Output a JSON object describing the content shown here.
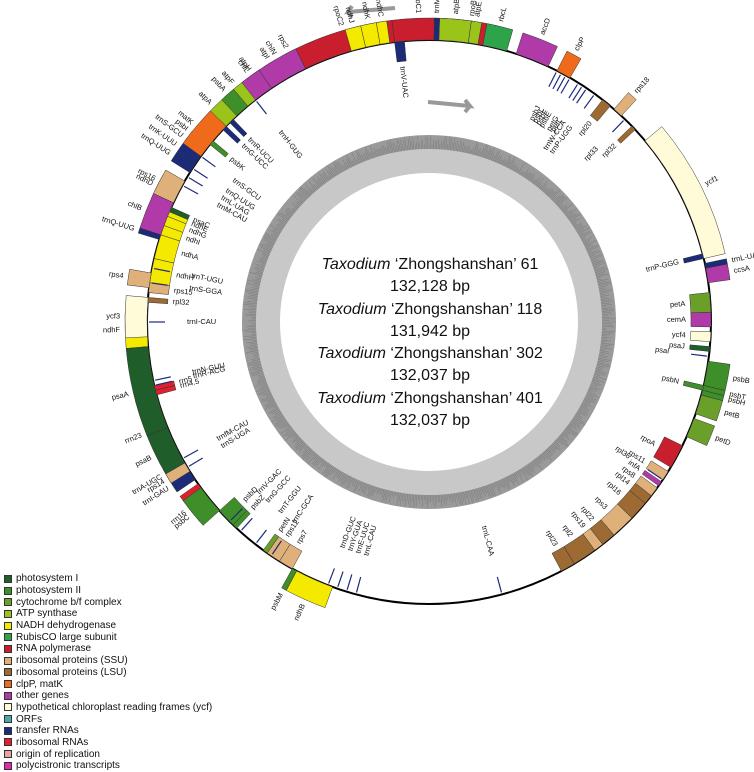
{
  "center": [
    {
      "genus": "Taxodium",
      "cultivar": "‘Zhongshanshan’ 61",
      "size": "132,128 bp"
    },
    {
      "genus": "Taxodium",
      "cultivar": "‘Zhongshanshan’ 118",
      "size": "131,942 bp"
    },
    {
      "genus": "Taxodium",
      "cultivar": "‘Zhongshanshan’ 302",
      "size": "132,037 bp"
    },
    {
      "genus": "Taxodium",
      "cultivar": "‘Zhongshanshan’ 401",
      "size": "132,037 bp"
    }
  ],
  "legend": [
    {
      "label": "photosystem I",
      "color": "#1f5e2a"
    },
    {
      "label": "photosystem II",
      "color": "#3e8e2a"
    },
    {
      "label": "cytochrome b/f complex",
      "color": "#6aa02a"
    },
    {
      "label": "ATP synthase",
      "color": "#9bc41a"
    },
    {
      "label": "NADH dehydrogenase",
      "color": "#f4ea00"
    },
    {
      "label": "RubisCO large subunit",
      "color": "#2ea44a"
    },
    {
      "label": "RNA polymerase",
      "color": "#c81e2e"
    },
    {
      "label": "ribosomal proteins (SSU)",
      "color": "#dfb07a"
    },
    {
      "label": "ribosomal proteins (LSU)",
      "color": "#9c6a32"
    },
    {
      "label": "clpP, matK",
      "color": "#ef6a1a"
    },
    {
      "label": "other genes",
      "color": "#b03aa8"
    },
    {
      "label": "hypothetical chloroplast reading frames (ycf)",
      "color": "#fffbd8"
    },
    {
      "label": "ORFs",
      "color": "#4aa8a0"
    },
    {
      "label": "transfer RNAs",
      "color": "#1c2a7a"
    },
    {
      "label": "ribosomal RNAs",
      "color": "#e0202e"
    },
    {
      "label": "origin of replication",
      "color": "#e7a4a0"
    },
    {
      "label": "polycistronic transcripts",
      "color": "#e22aa8"
    }
  ],
  "genes": [
    {
      "name": "rpoC2",
      "a": -26,
      "b": -7,
      "side": "out",
      "cat": "RNA polymerase"
    },
    {
      "name": "rpoC1",
      "a": -7,
      "b": 3,
      "side": "out",
      "cat": "RNA polymerase"
    },
    {
      "name": "rpoB",
      "a": 3,
      "b": 13,
      "side": "out",
      "cat": "RNA polymerase"
    },
    {
      "name": "rps2",
      "a": -29,
      "b": -26,
      "side": "out",
      "cat": "ribosomal proteins (SSU)"
    },
    {
      "name": "atpI",
      "a": -33,
      "b": -30,
      "side": "out",
      "cat": "ATP synthase"
    },
    {
      "name": "atpH",
      "a": -37,
      "b": -34,
      "side": "out",
      "cat": "ATP synthase"
    },
    {
      "name": "atpF",
      "a": -42,
      "b": -37,
      "side": "out",
      "cat": "ATP synthase"
    },
    {
      "name": "atpA",
      "a": -48,
      "b": -42,
      "side": "out",
      "cat": "ATP synthase"
    },
    {
      "name": "psbI",
      "a": -52,
      "b": -51,
      "side": "out",
      "cat": "photosystem II"
    },
    {
      "name": "psbK",
      "a": -51,
      "b": -50,
      "side": "in",
      "cat": "photosystem II"
    },
    {
      "name": "trnS-GCU",
      "a": -53.5,
      "b": -52.5,
      "side": "out",
      "cat": "transfer RNAs"
    },
    {
      "name": "trnQ-UUG",
      "a": -58,
      "b": -56,
      "side": "out",
      "cat": "transfer RNAs"
    },
    {
      "name": "trnG-UCC",
      "a": -47,
      "b": -46,
      "side": "in",
      "cat": "transfer RNAs"
    },
    {
      "name": "trnR-UCU",
      "a": -45,
      "b": -44,
      "side": "in",
      "cat": "transfer RNAs"
    },
    {
      "name": "ndhD",
      "a": -66,
      "b": -61,
      "side": "out",
      "cat": "NADH dehydrogenase"
    },
    {
      "name": "psaC",
      "a": -67,
      "b": -66,
      "side": "in",
      "cat": "photosystem I"
    },
    {
      "name": "ndhE",
      "a": -68,
      "b": -67,
      "side": "in",
      "cat": "NADH dehydrogenase"
    },
    {
      "name": "ndhG",
      "a": -70,
      "b": -68,
      "side": "in",
      "cat": "NADH dehydrogenase"
    },
    {
      "name": "ndhI",
      "a": -72,
      "b": -70,
      "side": "in",
      "cat": "NADH dehydrogenase"
    },
    {
      "name": "ndhA",
      "a": -77,
      "b": -72,
      "side": "in",
      "cat": "NADH dehydrogenase"
    },
    {
      "name": "ndhH",
      "a": -82,
      "b": -77,
      "side": "in",
      "cat": "NADH dehydrogenase"
    },
    {
      "name": "rps15",
      "a": -84,
      "b": -82,
      "side": "in",
      "cat": "ribosomal proteins (SSU)"
    },
    {
      "name": "rpl32",
      "a": -86,
      "b": -85,
      "side": "in",
      "cat": "ribosomal proteins (LSU)"
    },
    {
      "name": "ndhF",
      "a": -95,
      "b": -88,
      "side": "out",
      "cat": "NADH dehydrogenase"
    },
    {
      "name": "rrn23",
      "a": -118,
      "b": -105,
      "side": "out",
      "cat": "ribosomal RNAs"
    },
    {
      "name": "rrn4.5",
      "a": -105,
      "b": -104,
      "side": "in",
      "cat": "ribosomal RNAs"
    },
    {
      "name": "rrn5",
      "a": -104,
      "b": -103,
      "side": "in",
      "cat": "ribosomal RNAs"
    },
    {
      "name": "trnA-UGC",
      "a": -121,
      "b": -119,
      "side": "out",
      "cat": "transfer RNAs"
    },
    {
      "name": "trnI-GAU",
      "a": -124,
      "b": -121,
      "side": "out",
      "cat": "transfer RNAs"
    },
    {
      "name": "rrn16",
      "a": -131,
      "b": -125,
      "side": "out",
      "cat": "ribosomal RNAs"
    },
    {
      "name": "rps12",
      "a": -148,
      "b": -145,
      "side": "in",
      "cat": "ribosomal proteins (SSU)"
    },
    {
      "name": "rps7",
      "a": -151,
      "b": -148,
      "side": "in",
      "cat": "ribosomal proteins (SSU)"
    },
    {
      "name": "ndhB",
      "a": -160,
      "b": -152,
      "side": "out",
      "cat": "NADH dehydrogenase"
    },
    {
      "name": "rpl23",
      "a": -211,
      "b": -208,
      "side": "in",
      "cat": "ribosomal proteins (LSU)"
    },
    {
      "name": "rpl2",
      "a": -216,
      "b": -211,
      "side": "in",
      "cat": "ribosomal proteins (LSU)"
    },
    {
      "name": "rps19",
      "a": -218,
      "b": -216,
      "side": "in",
      "cat": "ribosomal proteins (SSU)"
    },
    {
      "name": "rpl22",
      "a": -221,
      "b": -218,
      "side": "in",
      "cat": "ribosomal proteins (LSU)"
    },
    {
      "name": "rps3",
      "a": -226,
      "b": -221,
      "side": "in",
      "cat": "ribosomal proteins (SSU)"
    },
    {
      "name": "rpl16",
      "a": -230,
      "b": -226,
      "side": "in",
      "cat": "ribosomal proteins (LSU)"
    },
    {
      "name": "rpl14",
      "a": -232,
      "b": -230,
      "side": "in",
      "cat": "ribosomal proteins (LSU)"
    },
    {
      "name": "rps8",
      "a": -234,
      "b": -232,
      "side": "in",
      "cat": "ribosomal proteins (SSU)"
    },
    {
      "name": "infA",
      "a": -235.5,
      "b": -234.5,
      "side": "in",
      "cat": "other genes"
    },
    {
      "name": "rps11",
      "a": -238,
      "b": -236,
      "side": "in",
      "cat": "ribosomal proteins (SSU)"
    },
    {
      "name": "rpoA",
      "a": -244,
      "b": -239,
      "side": "in",
      "cat": "RNA polymerase"
    },
    {
      "name": "petD",
      "a": -250,
      "b": -246,
      "side": "out",
      "cat": "cytochrome b/f complex"
    },
    {
      "name": "petB",
      "a": -255,
      "b": -251,
      "side": "out",
      "cat": "cytochrome b/f complex"
    },
    {
      "name": "psbH",
      "a": -256,
      "b": -255,
      "side": "out",
      "cat": "photosystem II"
    },
    {
      "name": "psbT",
      "a": -257,
      "b": -256,
      "side": "out",
      "cat": "photosystem II"
    },
    {
      "name": "psbB",
      "a": -262,
      "b": -257,
      "side": "out",
      "cat": "photosystem II"
    },
    {
      "name": "psbN",
      "a": -257,
      "b": -256,
      "side": "in",
      "cat": "photosystem II"
    },
    {
      "name": "psaJ",
      "a": -265,
      "b": -264,
      "side": "in",
      "cat": "photosystem I"
    },
    {
      "name": "ycf4",
      "a": -268,
      "b": -266,
      "side": "in",
      "cat": "hypothetical chloroplast reading frames (ycf)"
    },
    {
      "name": "cemA",
      "a": -272,
      "b": -269,
      "side": "in",
      "cat": "other genes"
    },
    {
      "name": "petA",
      "a": -276,
      "b": -272,
      "side": "in",
      "cat": "cytochrome b/f complex"
    },
    {
      "name": "ccsA",
      "a": -281,
      "b": -278,
      "side": "out",
      "cat": "other genes"
    },
    {
      "name": "trnL-UAG",
      "a": -282,
      "b": -281,
      "side": "out",
      "cat": "transfer RNAs"
    },
    {
      "name": "ycf1",
      "a": -310,
      "b": -283,
      "side": "out",
      "cat": "hypothetical chloroplast reading frames (ycf)"
    },
    {
      "name": "rpl32",
      "a": -314,
      "b": -313,
      "side": "in",
      "cat": "ribosomal proteins (LSU)"
    },
    {
      "name": "trnP-GGG",
      "a": -284,
      "b": -283,
      "side": "in",
      "cat": "transfer RNAs"
    },
    {
      "name": "rps18",
      "a": -319,
      "b": -317,
      "side": "out",
      "cat": "ribosomal proteins (SSU)"
    },
    {
      "name": "rpl20",
      "a": -322,
      "b": -320,
      "side": "in",
      "cat": "ribosomal proteins (LSU)"
    },
    {
      "name": "clpP",
      "a": -333,
      "b": -330,
      "side": "out",
      "cat": "clpP, matK"
    },
    {
      "name": "accD",
      "a": -342,
      "b": -335,
      "side": "out",
      "cat": "other genes"
    },
    {
      "name": "rbcL",
      "a": -349,
      "b": -344,
      "side": "out",
      "cat": "RubisCO large subunit"
    },
    {
      "name": "atpE",
      "a": -352,
      "b": -350,
      "side": "out",
      "cat": "ATP synthase"
    },
    {
      "name": "atpB",
      "a": -358,
      "b": -352,
      "side": "out",
      "cat": "ATP synthase"
    },
    {
      "name": "trnM-CAU",
      "a": -359,
      "b": -358,
      "side": "out",
      "cat": "transfer RNAs"
    },
    {
      "name": "trnV-UAC",
      "a": -367,
      "b": -365,
      "side": "in",
      "cat": "transfer RNAs"
    },
    {
      "name": "ndhC",
      "a": -370,
      "b": -368,
      "side": "out",
      "cat": "NADH dehydrogenase"
    },
    {
      "name": "ndhK",
      "a": -373,
      "b": -370,
      "side": "out",
      "cat": "NADH dehydrogenase"
    },
    {
      "name": "ndhJ",
      "a": -376,
      "b": -373,
      "side": "out",
      "cat": "NADH dehydrogenase"
    },
    {
      "name": "chlN",
      "a": -394,
      "b": -386,
      "side": "out",
      "cat": "other genes"
    },
    {
      "name": "chlL",
      "a": -398,
      "b": -394,
      "side": "out",
      "cat": "other genes"
    },
    {
      "name": "psbA",
      "a": -403,
      "b": -400,
      "side": "out",
      "cat": "photosystem II"
    },
    {
      "name": "matK",
      "a": -414,
      "b": -406,
      "side": "out",
      "cat": "clpP, matK"
    },
    {
      "name": "trnK-UUU",
      "a": -416,
      "b": -414,
      "side": "out",
      "cat": "transfer RNAs"
    },
    {
      "name": "rps16",
      "a": -425,
      "b": -420,
      "side": "out",
      "cat": "ribosomal proteins (SSU)"
    },
    {
      "name": "chlB",
      "a": -432,
      "b": -425,
      "side": "out",
      "cat": "other genes"
    },
    {
      "name": "trnQ-UUG",
      "a": -433,
      "b": -432,
      "side": "out",
      "cat": "transfer RNAs"
    },
    {
      "name": "rps4",
      "a": -443,
      "b": -440,
      "side": "out",
      "cat": "ribosomal proteins (SSU)"
    },
    {
      "name": "ycf3",
      "a": -453,
      "b": -445,
      "side": "out",
      "cat": "hypothetical chloroplast reading frames (ycf)"
    },
    {
      "name": "psaA",
      "a": -472,
      "b": -455,
      "side": "out",
      "cat": "photosystem I"
    },
    {
      "name": "psaB",
      "a": -480,
      "b": -472,
      "side": "out",
      "cat": "photosystem I"
    },
    {
      "name": "rps14",
      "a": -482,
      "b": -480,
      "side": "out",
      "cat": "ribosomal proteins (SSU)"
    },
    {
      "name": "psbC",
      "a": -492,
      "b": -486,
      "side": "out",
      "cat": "photosystem II"
    },
    {
      "name": "psbD",
      "a": -496,
      "b": -492,
      "side": "in",
      "cat": "photosystem II"
    },
    {
      "name": "psbZ",
      "a": -497,
      "b": -496,
      "side": "in",
      "cat": "photosystem II"
    },
    {
      "name": "petN",
      "a": -505,
      "b": -504,
      "side": "in",
      "cat": "cytochrome b/f complex"
    },
    {
      "name": "psbM",
      "a": -512,
      "b": -511,
      "side": "out",
      "cat": "photosystem II"
    }
  ],
  "extra_labels": [
    {
      "text": "trnS-GCU",
      "ang": -54
    },
    {
      "text": "trnQ-UUG",
      "ang": -57
    },
    {
      "text": "trnL-UAG",
      "ang": -59
    },
    {
      "text": "trnM-CAU",
      "ang": -61
    },
    {
      "text": "trnS-GGA",
      "ang": -442
    },
    {
      "text": "trnT-UGU",
      "ang": -439
    },
    {
      "text": "trnT-GGU",
      "ang": -502
    },
    {
      "text": "trnC-GCA",
      "ang": -506
    },
    {
      "text": "trnD-GUC",
      "ang": -519
    },
    {
      "text": "trnY-GUA",
      "ang": -521
    },
    {
      "text": "trnE-UUC",
      "ang": -523
    },
    {
      "text": "trnS-UGA",
      "ang": -481
    },
    {
      "text": "trnfM-CAU",
      "ang": -479
    },
    {
      "text": "trnG-GCC",
      "ang": -498
    },
    {
      "text": "trnN-GUU",
      "ang": -102
    },
    {
      "text": "trnR-ACG",
      "ang": -103
    },
    {
      "text": "trnV-GAC",
      "ang": -135
    },
    {
      "text": "trnL-CAU",
      "ang": -165
    },
    {
      "text": "trnL-CAA",
      "ang": -195
    },
    {
      "text": "trnI-CAU",
      "ang": -450
    },
    {
      "text": "trnH-GUG",
      "ang": -398
    },
    {
      "text": "trnW-CCA",
      "ang": -326
    },
    {
      "text": "trnP-UGG",
      "ang": -324
    },
    {
      "text": "psaI",
      "ang": -263
    },
    {
      "text": "petL",
      "ang": -327
    },
    {
      "text": "petG",
      "ang": -328
    },
    {
      "text": "psbE",
      "ang": -330
    },
    {
      "text": "psbF",
      "ang": -331
    },
    {
      "text": "psbL",
      "ang": -332
    },
    {
      "text": "psbJ",
      "ang": -333
    },
    {
      "text": "rpl33",
      "ang": -316
    },
    {
      "text": "rpl36",
      "ang": -236
    }
  ]
}
